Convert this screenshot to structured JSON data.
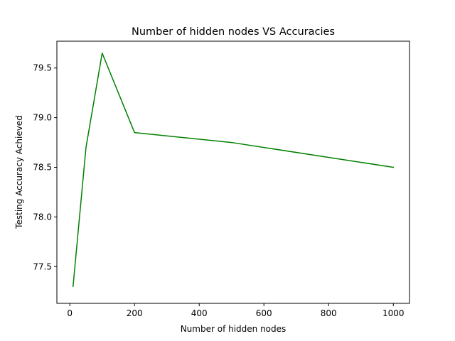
{
  "chart_data": {
    "type": "line",
    "title": "Number of hidden nodes VS Accuracies",
    "xlabel": "Number of hidden nodes",
    "ylabel": "Testing Accuracy Achieved",
    "xlim": [
      -40,
      1050
    ],
    "ylim": [
      77.13,
      79.77
    ],
    "xticks": [
      0,
      200,
      400,
      600,
      800,
      1000
    ],
    "xtick_labels": [
      "0",
      "200",
      "400",
      "600",
      "800",
      "1000"
    ],
    "yticks": [
      77.5,
      78.0,
      78.5,
      79.0,
      79.5
    ],
    "ytick_labels": [
      "77.5",
      "78.0",
      "78.5",
      "79.0",
      "79.5"
    ],
    "grid": false,
    "legend": "none",
    "series": [
      {
        "color": "#008000",
        "x": [
          10,
          50,
          100,
          200,
          500,
          1000
        ],
        "y": [
          77.3,
          78.7,
          79.65,
          78.85,
          78.75,
          78.5
        ]
      }
    ]
  }
}
